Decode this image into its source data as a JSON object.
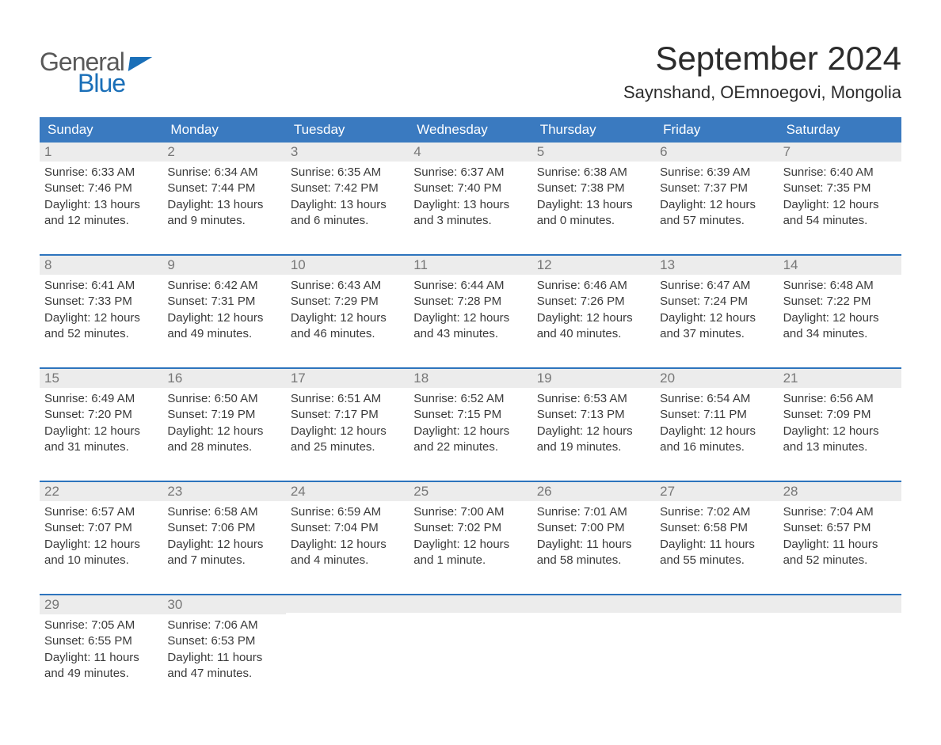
{
  "logo": {
    "word1": "General",
    "word2": "Blue"
  },
  "title": "September 2024",
  "subtitle": "Saynshand, OEmnoegovi, Mongolia",
  "colors": {
    "header_blue": "#3a7ac0",
    "accent_blue": "#2d74bd",
    "day_header_bg": "#ececec",
    "logo_gray": "#595959",
    "logo_blue": "#1a6fb8",
    "background": "#ffffff"
  },
  "typography": {
    "title_fontsize": 42,
    "subtitle_fontsize": 22,
    "weekday_fontsize": 17,
    "daynum_fontsize": 17,
    "body_fontsize": 15
  },
  "weekdays": [
    "Sunday",
    "Monday",
    "Tuesday",
    "Wednesday",
    "Thursday",
    "Friday",
    "Saturday"
  ],
  "weeks": [
    [
      {
        "n": "1",
        "sunrise": "Sunrise: 6:33 AM",
        "sunset": "Sunset: 7:46 PM",
        "dl1": "Daylight: 13 hours",
        "dl2": "and 12 minutes."
      },
      {
        "n": "2",
        "sunrise": "Sunrise: 6:34 AM",
        "sunset": "Sunset: 7:44 PM",
        "dl1": "Daylight: 13 hours",
        "dl2": "and 9 minutes."
      },
      {
        "n": "3",
        "sunrise": "Sunrise: 6:35 AM",
        "sunset": "Sunset: 7:42 PM",
        "dl1": "Daylight: 13 hours",
        "dl2": "and 6 minutes."
      },
      {
        "n": "4",
        "sunrise": "Sunrise: 6:37 AM",
        "sunset": "Sunset: 7:40 PM",
        "dl1": "Daylight: 13 hours",
        "dl2": "and 3 minutes."
      },
      {
        "n": "5",
        "sunrise": "Sunrise: 6:38 AM",
        "sunset": "Sunset: 7:38 PM",
        "dl1": "Daylight: 13 hours",
        "dl2": "and 0 minutes."
      },
      {
        "n": "6",
        "sunrise": "Sunrise: 6:39 AM",
        "sunset": "Sunset: 7:37 PM",
        "dl1": "Daylight: 12 hours",
        "dl2": "and 57 minutes."
      },
      {
        "n": "7",
        "sunrise": "Sunrise: 6:40 AM",
        "sunset": "Sunset: 7:35 PM",
        "dl1": "Daylight: 12 hours",
        "dl2": "and 54 minutes."
      }
    ],
    [
      {
        "n": "8",
        "sunrise": "Sunrise: 6:41 AM",
        "sunset": "Sunset: 7:33 PM",
        "dl1": "Daylight: 12 hours",
        "dl2": "and 52 minutes."
      },
      {
        "n": "9",
        "sunrise": "Sunrise: 6:42 AM",
        "sunset": "Sunset: 7:31 PM",
        "dl1": "Daylight: 12 hours",
        "dl2": "and 49 minutes."
      },
      {
        "n": "10",
        "sunrise": "Sunrise: 6:43 AM",
        "sunset": "Sunset: 7:29 PM",
        "dl1": "Daylight: 12 hours",
        "dl2": "and 46 minutes."
      },
      {
        "n": "11",
        "sunrise": "Sunrise: 6:44 AM",
        "sunset": "Sunset: 7:28 PM",
        "dl1": "Daylight: 12 hours",
        "dl2": "and 43 minutes."
      },
      {
        "n": "12",
        "sunrise": "Sunrise: 6:46 AM",
        "sunset": "Sunset: 7:26 PM",
        "dl1": "Daylight: 12 hours",
        "dl2": "and 40 minutes."
      },
      {
        "n": "13",
        "sunrise": "Sunrise: 6:47 AM",
        "sunset": "Sunset: 7:24 PM",
        "dl1": "Daylight: 12 hours",
        "dl2": "and 37 minutes."
      },
      {
        "n": "14",
        "sunrise": "Sunrise: 6:48 AM",
        "sunset": "Sunset: 7:22 PM",
        "dl1": "Daylight: 12 hours",
        "dl2": "and 34 minutes."
      }
    ],
    [
      {
        "n": "15",
        "sunrise": "Sunrise: 6:49 AM",
        "sunset": "Sunset: 7:20 PM",
        "dl1": "Daylight: 12 hours",
        "dl2": "and 31 minutes."
      },
      {
        "n": "16",
        "sunrise": "Sunrise: 6:50 AM",
        "sunset": "Sunset: 7:19 PM",
        "dl1": "Daylight: 12 hours",
        "dl2": "and 28 minutes."
      },
      {
        "n": "17",
        "sunrise": "Sunrise: 6:51 AM",
        "sunset": "Sunset: 7:17 PM",
        "dl1": "Daylight: 12 hours",
        "dl2": "and 25 minutes."
      },
      {
        "n": "18",
        "sunrise": "Sunrise: 6:52 AM",
        "sunset": "Sunset: 7:15 PM",
        "dl1": "Daylight: 12 hours",
        "dl2": "and 22 minutes."
      },
      {
        "n": "19",
        "sunrise": "Sunrise: 6:53 AM",
        "sunset": "Sunset: 7:13 PM",
        "dl1": "Daylight: 12 hours",
        "dl2": "and 19 minutes."
      },
      {
        "n": "20",
        "sunrise": "Sunrise: 6:54 AM",
        "sunset": "Sunset: 7:11 PM",
        "dl1": "Daylight: 12 hours",
        "dl2": "and 16 minutes."
      },
      {
        "n": "21",
        "sunrise": "Sunrise: 6:56 AM",
        "sunset": "Sunset: 7:09 PM",
        "dl1": "Daylight: 12 hours",
        "dl2": "and 13 minutes."
      }
    ],
    [
      {
        "n": "22",
        "sunrise": "Sunrise: 6:57 AM",
        "sunset": "Sunset: 7:07 PM",
        "dl1": "Daylight: 12 hours",
        "dl2": "and 10 minutes."
      },
      {
        "n": "23",
        "sunrise": "Sunrise: 6:58 AM",
        "sunset": "Sunset: 7:06 PM",
        "dl1": "Daylight: 12 hours",
        "dl2": "and 7 minutes."
      },
      {
        "n": "24",
        "sunrise": "Sunrise: 6:59 AM",
        "sunset": "Sunset: 7:04 PM",
        "dl1": "Daylight: 12 hours",
        "dl2": "and 4 minutes."
      },
      {
        "n": "25",
        "sunrise": "Sunrise: 7:00 AM",
        "sunset": "Sunset: 7:02 PM",
        "dl1": "Daylight: 12 hours",
        "dl2": "and 1 minute."
      },
      {
        "n": "26",
        "sunrise": "Sunrise: 7:01 AM",
        "sunset": "Sunset: 7:00 PM",
        "dl1": "Daylight: 11 hours",
        "dl2": "and 58 minutes."
      },
      {
        "n": "27",
        "sunrise": "Sunrise: 7:02 AM",
        "sunset": "Sunset: 6:58 PM",
        "dl1": "Daylight: 11 hours",
        "dl2": "and 55 minutes."
      },
      {
        "n": "28",
        "sunrise": "Sunrise: 7:04 AM",
        "sunset": "Sunset: 6:57 PM",
        "dl1": "Daylight: 11 hours",
        "dl2": "and 52 minutes."
      }
    ],
    [
      {
        "n": "29",
        "sunrise": "Sunrise: 7:05 AM",
        "sunset": "Sunset: 6:55 PM",
        "dl1": "Daylight: 11 hours",
        "dl2": "and 49 minutes."
      },
      {
        "n": "30",
        "sunrise": "Sunrise: 7:06 AM",
        "sunset": "Sunset: 6:53 PM",
        "dl1": "Daylight: 11 hours",
        "dl2": "and 47 minutes."
      },
      {
        "empty": true
      },
      {
        "empty": true
      },
      {
        "empty": true
      },
      {
        "empty": true
      },
      {
        "empty": true
      }
    ]
  ]
}
